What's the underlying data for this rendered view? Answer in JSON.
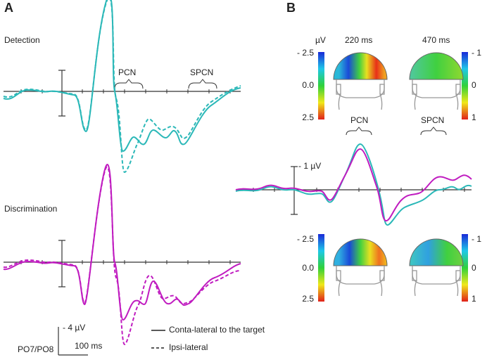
{
  "panel_a": {
    "label": "A",
    "detection": {
      "title": "Detection",
      "pcn": "PCN",
      "spcn": "SPCN"
    },
    "discrimination": {
      "title": "Discrimination"
    },
    "scale": {
      "amplitude": "- 4 µV",
      "channel": "PO7/PO8",
      "time": "100 ms"
    },
    "legend": {
      "solid": "Conta-lateral to the target",
      "dashed": "Ipsi-lateral"
    }
  },
  "panel_b": {
    "label": "B",
    "top_maps": {
      "unit": "µV",
      "time_1": "220 ms",
      "time_2": "470 ms",
      "left_bar": [
        "- 2.5",
        "0.0",
        "2.5"
      ],
      "right_bar": [
        "- 1",
        "0",
        "1"
      ]
    },
    "pcn": "PCN",
    "spcn": "SPCN",
    "amplitude": "- 1 µV",
    "bottom_maps": {
      "left_bar": [
        "- 2.5",
        "0.0",
        "2.5"
      ],
      "right_bar": [
        "- 1",
        "0",
        "1"
      ]
    }
  }
}
